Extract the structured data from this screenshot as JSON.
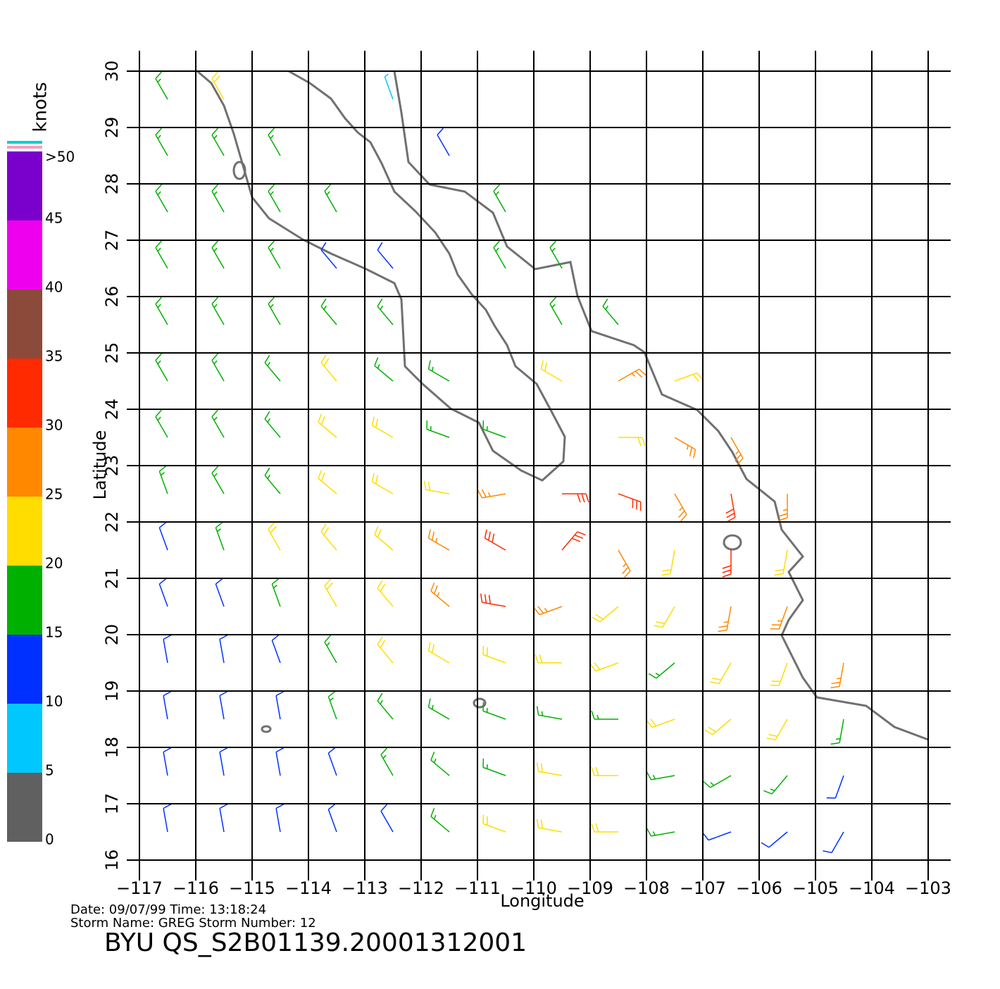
{
  "chart_data": {
    "type": "barbs",
    "xlabel": "Longitude",
    "ylabel": "Latitude",
    "xlim": [
      -117,
      -103
    ],
    "ylim": [
      16,
      30
    ],
    "xticks": [
      {
        "value": -117,
        "label": "−117"
      },
      {
        "value": -116,
        "label": "−116"
      },
      {
        "value": -115,
        "label": "−115"
      },
      {
        "value": -114,
        "label": "−114"
      },
      {
        "value": -113,
        "label": "−113"
      },
      {
        "value": -112,
        "label": "−112"
      },
      {
        "value": -111,
        "label": "−111"
      },
      {
        "value": -110,
        "label": "−110"
      },
      {
        "value": -109,
        "label": "−109"
      },
      {
        "value": -108,
        "label": "−108"
      },
      {
        "value": -107,
        "label": "−107"
      },
      {
        "value": -106,
        "label": "−106"
      },
      {
        "value": -105,
        "label": "−105"
      },
      {
        "value": -104,
        "label": "−104"
      },
      {
        "value": -103,
        "label": "−103"
      }
    ],
    "yticks": [
      16,
      17,
      18,
      19,
      20,
      21,
      22,
      23,
      24,
      25,
      26,
      27,
      28,
      29,
      30
    ],
    "grid": true,
    "lon": [
      -116.5,
      -115.5,
      -114.5,
      -113.5,
      -112.5,
      -111.5,
      -110.5,
      -109.5,
      -108.5,
      -107.5,
      -106.5,
      -105.5,
      -104.5,
      -103.5
    ],
    "lat": [
      29.5,
      28.5,
      27.5,
      26.5,
      25.5,
      24.5,
      23.5,
      22.5,
      21.5,
      20.5,
      19.5,
      18.5,
      17.5,
      16.5
    ],
    "speed": [
      [
        17,
        20,
        null,
        null,
        8,
        null,
        null,
        null,
        null,
        null,
        null,
        null,
        null,
        null
      ],
      [
        17,
        17,
        17,
        null,
        null,
        10,
        null,
        null,
        null,
        null,
        null,
        null,
        null,
        null
      ],
      [
        17,
        17,
        17,
        17,
        null,
        null,
        17,
        null,
        null,
        null,
        null,
        null,
        null,
        null
      ],
      [
        17,
        17,
        18,
        12,
        12,
        null,
        17,
        17,
        null,
        null,
        null,
        null,
        null,
        null
      ],
      [
        17,
        17,
        18,
        17,
        17,
        null,
        null,
        17,
        18,
        null,
        null,
        null,
        null,
        null
      ],
      [
        17,
        17,
        18,
        20,
        17,
        17,
        null,
        22,
        26,
        24,
        null,
        null,
        null,
        null
      ],
      [
        17,
        17,
        18,
        21,
        20,
        18,
        17,
        null,
        24,
        28,
        26,
        null,
        null,
        null
      ],
      [
        16,
        17,
        18,
        20,
        22,
        22,
        27,
        30,
        30,
        28,
        30,
        25,
        null,
        null
      ],
      [
        14,
        16,
        20,
        21,
        23,
        27,
        31,
        32,
        25,
        20,
        30,
        22,
        null,
        null
      ],
      [
        12,
        13,
        17,
        21,
        23,
        27,
        31,
        28,
        23,
        20,
        27,
        25,
        null,
        null
      ],
      [
        12,
        12,
        14,
        17,
        21,
        22,
        20,
        20,
        20,
        19,
        22,
        22,
        25,
        null
      ],
      [
        12,
        12,
        12,
        15,
        17,
        18,
        18,
        18,
        18,
        20,
        21,
        20,
        17,
        null
      ],
      [
        12,
        12,
        12,
        13,
        15,
        16,
        18,
        21,
        20,
        18,
        18,
        17,
        13,
        null
      ],
      [
        12,
        12,
        12,
        12,
        14,
        17,
        21,
        23,
        20,
        17,
        14,
        13,
        12,
        null
      ]
    ],
    "direction": [
      [
        330,
        330,
        null,
        null,
        340,
        null,
        null,
        null,
        null,
        null,
        null,
        null,
        null,
        null
      ],
      [
        330,
        330,
        330,
        null,
        null,
        330,
        null,
        null,
        null,
        null,
        null,
        null,
        null,
        null
      ],
      [
        330,
        330,
        330,
        330,
        null,
        null,
        330,
        null,
        null,
        null,
        null,
        null,
        null,
        null
      ],
      [
        330,
        330,
        330,
        320,
        320,
        null,
        330,
        330,
        null,
        null,
        null,
        null,
        null,
        null
      ],
      [
        330,
        330,
        330,
        320,
        320,
        null,
        null,
        330,
        320,
        null,
        null,
        null,
        null,
        null
      ],
      [
        330,
        330,
        320,
        320,
        310,
        300,
        null,
        300,
        60,
        70,
        null,
        null,
        null,
        null
      ],
      [
        330,
        330,
        320,
        310,
        300,
        290,
        290,
        null,
        90,
        120,
        150,
        null,
        null,
        null
      ],
      [
        340,
        330,
        320,
        310,
        300,
        280,
        260,
        90,
        110,
        150,
        170,
        180,
        null,
        null
      ],
      [
        340,
        340,
        330,
        320,
        310,
        300,
        300,
        40,
        150,
        190,
        180,
        190,
        null,
        null
      ],
      [
        340,
        340,
        340,
        330,
        320,
        310,
        280,
        250,
        230,
        210,
        190,
        200,
        null,
        null
      ],
      [
        350,
        350,
        340,
        330,
        320,
        300,
        290,
        270,
        250,
        230,
        210,
        200,
        190,
        null
      ],
      [
        350,
        350,
        350,
        340,
        320,
        300,
        290,
        280,
        270,
        250,
        230,
        210,
        190,
        null
      ],
      [
        350,
        350,
        350,
        340,
        330,
        310,
        290,
        280,
        270,
        260,
        240,
        220,
        200,
        null
      ],
      [
        350,
        350,
        350,
        340,
        330,
        310,
        290,
        280,
        270,
        260,
        250,
        230,
        210,
        null
      ]
    ]
  },
  "colorbar": {
    "title": "knots",
    "ticks": [
      0,
      5,
      10,
      15,
      20,
      25,
      30,
      35,
      40,
      45,
      {
        "value": 50,
        "label": ">50"
      }
    ],
    "colors": [
      "#606060",
      "#00c8ff",
      "#0030ff",
      "#00b000",
      "#ffdd00",
      "#ff8800",
      "#ff2a00",
      "#8b4a3a",
      "#ee00ee",
      "#7a00cc"
    ]
  },
  "footer": {
    "line1": "Date: 09/07/99   Time: 13:18:24",
    "line2": "Storm Name: GREG   Storm Number: 12",
    "id": "BYU QS_S2B01139.20001312001"
  }
}
